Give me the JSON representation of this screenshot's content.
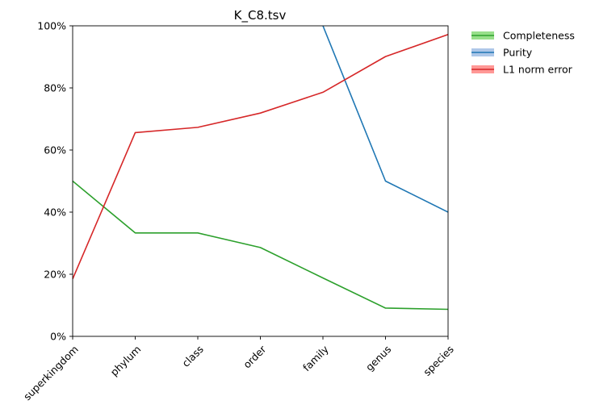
{
  "chart_data": {
    "type": "line",
    "title": "K_C8.tsv",
    "xlabel": "",
    "ylabel": "",
    "categories": [
      "superkingdom",
      "phylum",
      "class",
      "order",
      "family",
      "genus",
      "species"
    ],
    "ylim": [
      0,
      100
    ],
    "y_ticks": [
      0,
      20,
      40,
      60,
      80,
      100
    ],
    "y_tick_labels": [
      "0%",
      "20%",
      "40%",
      "60%",
      "80%",
      "100%"
    ],
    "grid": false,
    "legend_position": "outside-top-right",
    "series": [
      {
        "name": "Completeness",
        "color": "#2ca02c",
        "band_color": "#98df8a",
        "values": [
          50.0,
          33.3,
          33.3,
          28.6,
          18.8,
          9.1,
          8.7
        ]
      },
      {
        "name": "Purity",
        "color": "#1f77b4",
        "band_color": "#aec7e8",
        "values": [
          null,
          null,
          null,
          null,
          100.0,
          50.0,
          40.0
        ]
      },
      {
        "name": "L1 norm error",
        "color": "#d62728",
        "band_color": "#ff9896",
        "values": [
          18.5,
          65.6,
          67.3,
          71.9,
          78.6,
          90.1,
          97.2
        ]
      }
    ]
  }
}
